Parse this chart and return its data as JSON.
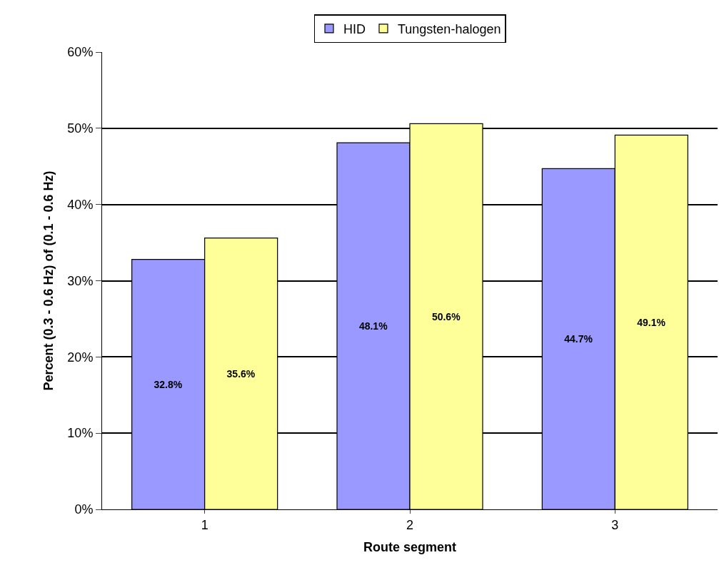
{
  "chart_data": {
    "type": "bar",
    "xlabel": "Route segment",
    "ylabel": "Percent (0.3 - 0.6 Hz) of (0.1 - 0.6 Hz)",
    "categories": [
      "1",
      "2",
      "3"
    ],
    "series": [
      {
        "name": "HID",
        "color": "#9999ff",
        "values": [
          32.8,
          48.1,
          44.7
        ],
        "value_labels": [
          "32.8%",
          "48.1%",
          "44.7%"
        ]
      },
      {
        "name": "Tungsten-halogen",
        "color": "#ffff99",
        "values": [
          35.6,
          50.6,
          49.1
        ],
        "value_labels": [
          "35.6%",
          "50.6%",
          "49.1%"
        ]
      }
    ],
    "ylim": [
      0,
      60
    ],
    "yticks": [
      {
        "value": 0,
        "label": "0%"
      },
      {
        "value": 10,
        "label": "10%"
      },
      {
        "value": 20,
        "label": "20%"
      },
      {
        "value": 30,
        "label": "30%"
      },
      {
        "value": 40,
        "label": "40%"
      },
      {
        "value": 50,
        "label": "50%"
      },
      {
        "value": 60,
        "label": "60%"
      }
    ],
    "grid": "y",
    "legend": "top"
  }
}
